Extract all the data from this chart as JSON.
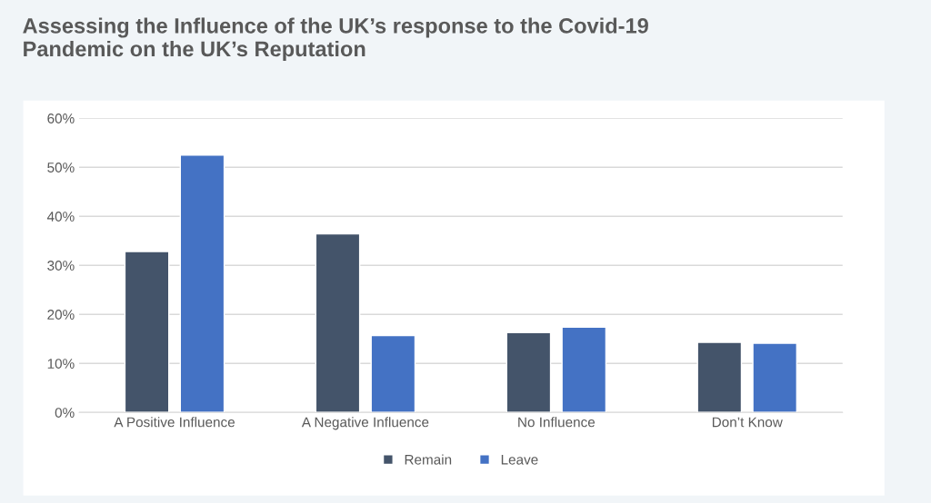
{
  "chart_data": {
    "type": "bar",
    "title": "Assessing the Influence of the UK’s response to the Covid-19\nPandemic on the UK’s Reputation",
    "categories": [
      "A Positive Influence",
      "A Negative Influence",
      "No Influence",
      "Don’t Know"
    ],
    "series": [
      {
        "name": "Remain",
        "color": "#44546a",
        "values": [
          32.8,
          36.4,
          16.3,
          14.3
        ]
      },
      {
        "name": "Leave",
        "color": "#4472c4",
        "values": [
          52.5,
          15.7,
          17.4,
          14.1
        ]
      }
    ],
    "ylim": [
      0,
      60
    ],
    "yticks": [
      {
        "value": 0,
        "label": "0%"
      },
      {
        "value": 10,
        "label": "10%"
      },
      {
        "value": 20,
        "label": "20%"
      },
      {
        "value": 30,
        "label": "30%"
      },
      {
        "value": 40,
        "label": "40%"
      },
      {
        "value": 50,
        "label": "50%"
      },
      {
        "value": 60,
        "label": "60%"
      }
    ],
    "grid": "y",
    "legend": "bottom"
  }
}
